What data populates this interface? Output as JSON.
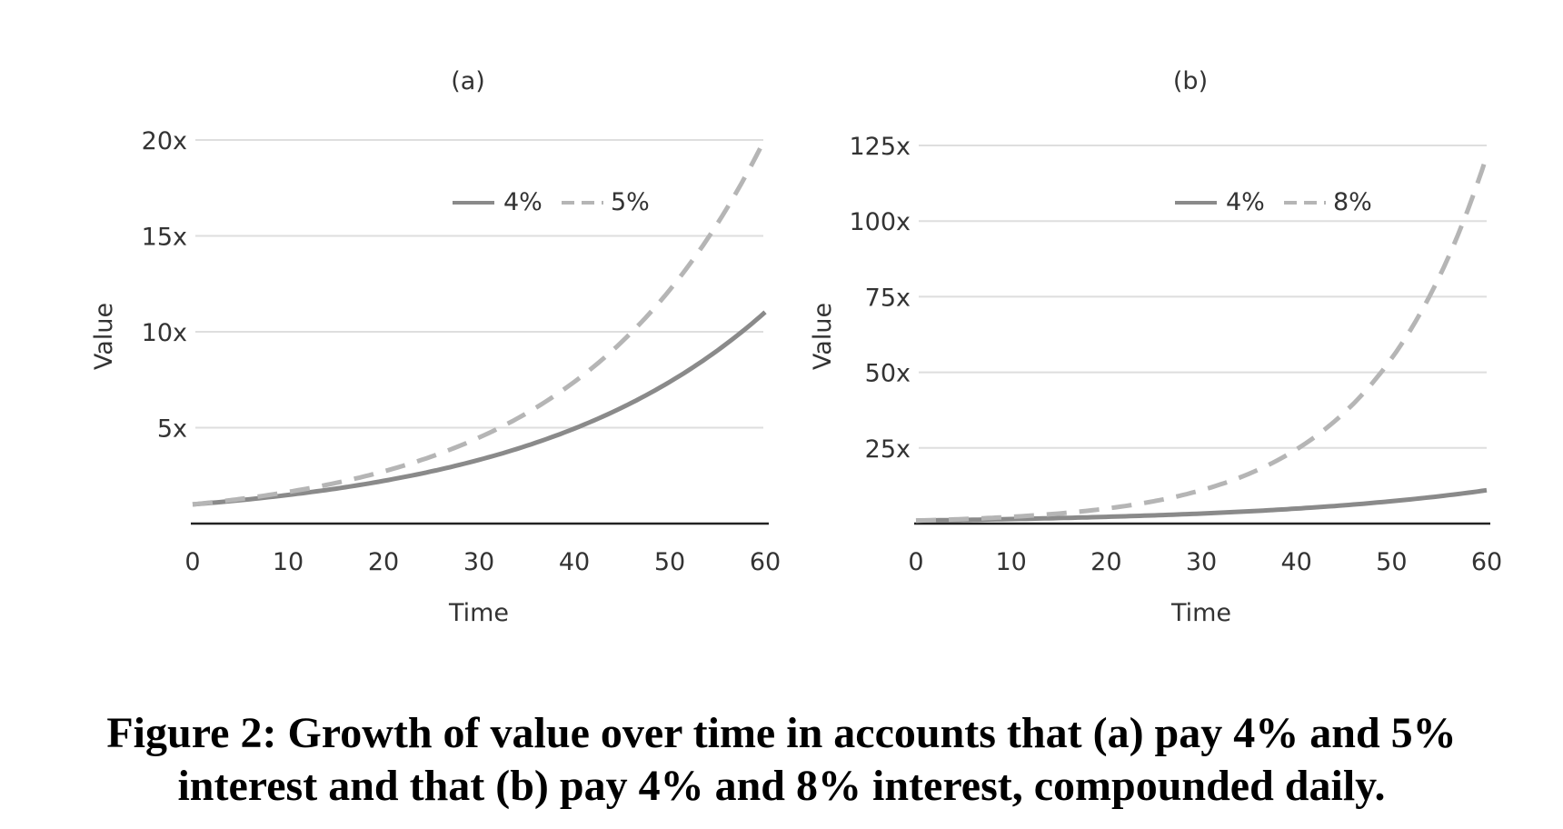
{
  "chart_data": [
    {
      "type": "line",
      "title": "(a)",
      "xlabel": "Time",
      "ylabel": "Value",
      "x_ticks": [
        "0",
        "10",
        "20",
        "30",
        "40",
        "50",
        "60"
      ],
      "y_ticks": [
        {
          "value": 5,
          "label": "5x"
        },
        {
          "value": 10,
          "label": "10x"
        },
        {
          "value": 15,
          "label": "15x"
        },
        {
          "value": 20,
          "label": "20x"
        }
      ],
      "xlim": [
        0,
        60
      ],
      "ylim": [
        0,
        20
      ],
      "grid": true,
      "legend_position": "top-center",
      "series": [
        {
          "name": "4%",
          "style": "solid",
          "color": "#8a8a8a",
          "rate": 0.04,
          "x": [
            0,
            10,
            20,
            30,
            40,
            50,
            60
          ],
          "values": [
            1.0,
            1.49,
            2.23,
            3.32,
            4.95,
            7.39,
            11.02
          ]
        },
        {
          "name": "5%",
          "style": "dashed",
          "color": "#b5b5b5",
          "rate": 0.05,
          "x": [
            0,
            10,
            20,
            30,
            40,
            50,
            60
          ],
          "values": [
            1.0,
            1.65,
            2.72,
            4.48,
            7.39,
            12.18,
            20.08
          ]
        }
      ]
    },
    {
      "type": "line",
      "title": "(b)",
      "xlabel": "Time",
      "ylabel": "Value",
      "x_ticks": [
        "0",
        "10",
        "20",
        "30",
        "40",
        "50",
        "60"
      ],
      "y_ticks": [
        {
          "value": 25,
          "label": "25x"
        },
        {
          "value": 50,
          "label": "50x"
        },
        {
          "value": 75,
          "label": "75x"
        },
        {
          "value": 100,
          "label": "100x"
        },
        {
          "value": 125,
          "label": "125x"
        }
      ],
      "xlim": [
        0,
        60
      ],
      "ylim": [
        0,
        125
      ],
      "grid": true,
      "legend_position": "top-center",
      "series": [
        {
          "name": "4%",
          "style": "solid",
          "color": "#8a8a8a",
          "rate": 0.04,
          "x": [
            0,
            10,
            20,
            30,
            40,
            50,
            60
          ],
          "values": [
            1.0,
            1.49,
            2.23,
            3.32,
            4.95,
            7.39,
            11.02
          ]
        },
        {
          "name": "8%",
          "style": "dashed",
          "color": "#b5b5b5",
          "rate": 0.08,
          "x": [
            0,
            10,
            20,
            30,
            40,
            50,
            60
          ],
          "values": [
            1.0,
            2.23,
            4.95,
            11.02,
            24.53,
            54.6,
            121.51
          ]
        }
      ]
    }
  ],
  "caption": {
    "line1": "Figure 2: Growth of value over time in accounts that (a) pay 4% and 5%",
    "line2": "interest and that (b) pay 4% and 8% interest, compounded daily."
  }
}
